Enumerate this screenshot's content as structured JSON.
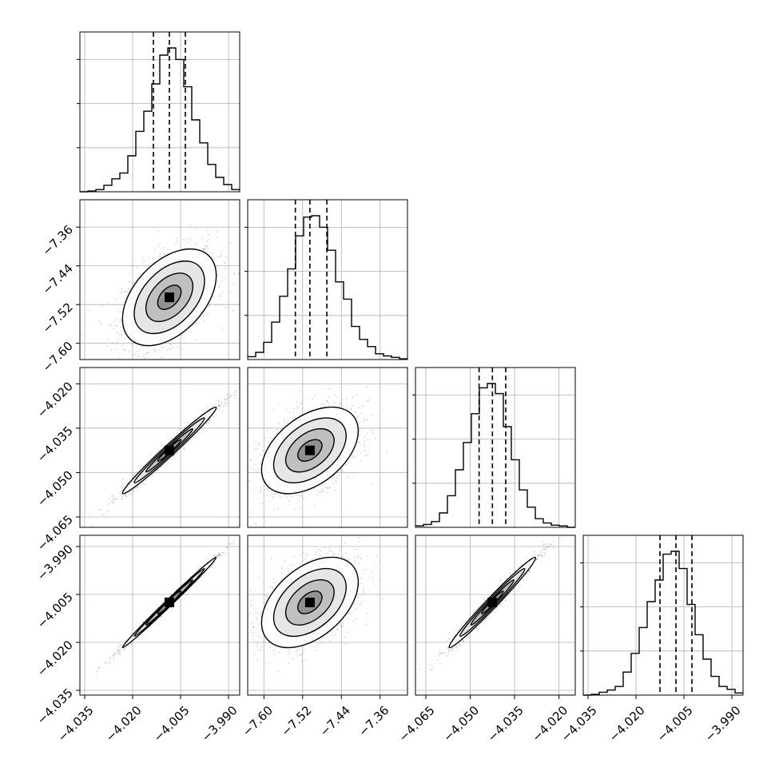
{
  "chart_data": {
    "type": "corner",
    "parameters": [
      {
        "range": [
          -4.0365,
          -3.9865
        ],
        "ticks": [
          -4.035,
          -4.02,
          -4.005,
          -3.99
        ],
        "tick_labels": [
          "−4.035",
          "−4.020",
          "−4.005",
          "−3.990"
        ],
        "quantiles": [
          -4.0135,
          -4.0085,
          -4.0035
        ],
        "hist": {
          "bins": [
            -4.0365,
            -4.034,
            -4.0315,
            -4.029,
            -4.0265,
            -4.024,
            -4.0215,
            -4.019,
            -4.0165,
            -4.014,
            -4.0115,
            -4.009,
            -4.0065,
            -4.004,
            -4.0015,
            -3.999,
            -3.9965,
            -3.994,
            -3.9915,
            -3.989,
            -3.9865
          ],
          "counts": [
            0.0,
            0.005,
            0.015,
            0.045,
            0.09,
            0.13,
            0.25,
            0.42,
            0.56,
            0.75,
            0.95,
            1.0,
            0.92,
            0.73,
            0.5,
            0.34,
            0.19,
            0.1,
            0.05,
            0.015
          ]
        }
      },
      {
        "range": [
          -7.6335,
          -7.3035
        ],
        "ticks": [
          -7.6,
          -7.52,
          -7.44,
          -7.36
        ],
        "tick_labels": [
          "−7.60",
          "−7.52",
          "−7.44",
          "−7.36"
        ],
        "quantiles": [
          -7.535,
          -7.505,
          -7.47
        ],
        "hist": {
          "bins": [
            -7.6335,
            -7.617,
            -7.6005,
            -7.584,
            -7.5675,
            -7.551,
            -7.5345,
            -7.518,
            -7.5015,
            -7.485,
            -7.4685,
            -7.452,
            -7.4355,
            -7.419,
            -7.4025,
            -7.386,
            -7.3695,
            -7.353,
            -7.3365,
            -7.32,
            -7.3035
          ],
          "counts": [
            0.02,
            0.05,
            0.12,
            0.26,
            0.44,
            0.63,
            0.86,
            0.99,
            1.0,
            0.92,
            0.76,
            0.54,
            0.42,
            0.23,
            0.14,
            0.09,
            0.04,
            0.025,
            0.015,
            0.005
          ]
        }
      },
      {
        "range": [
          -4.0685,
          -4.0145
        ],
        "ticks": [
          -4.065,
          -4.05,
          -4.035,
          -4.02
        ],
        "tick_labels": [
          "−4.065",
          "−4.050",
          "−4.035",
          "−4.020"
        ],
        "quantiles": [
          -4.047,
          -4.0425,
          -4.038
        ],
        "hist": {
          "bins": [
            -4.0685,
            -4.0658,
            -4.0631,
            -4.0604,
            -4.0577,
            -4.055,
            -4.0523,
            -4.0496,
            -4.0469,
            -4.0442,
            -4.0415,
            -4.0388,
            -4.0361,
            -4.0334,
            -4.0307,
            -4.028,
            -4.0253,
            -4.0226,
            -4.0199,
            -4.0172,
            -4.0145
          ],
          "counts": [
            0.01,
            0.02,
            0.04,
            0.1,
            0.22,
            0.4,
            0.59,
            0.79,
            0.97,
            1.0,
            0.93,
            0.7,
            0.47,
            0.26,
            0.14,
            0.06,
            0.03,
            0.015,
            0.01,
            0.0
          ]
        }
      },
      {
        "range": [
          -4.0365,
          -3.9865
        ],
        "ticks": [
          -4.035,
          -4.02,
          -4.005,
          -3.99
        ],
        "tick_labels": [
          "−4.035",
          "−4.020",
          "−4.005",
          "−3.990"
        ],
        "quantiles": [
          -4.0125,
          -4.0075,
          -4.0025
        ],
        "hist": {
          "bins": [
            -4.0365,
            -4.034,
            -4.0315,
            -4.029,
            -4.0265,
            -4.024,
            -4.0215,
            -4.019,
            -4.0165,
            -4.014,
            -4.0115,
            -4.009,
            -4.0065,
            -4.004,
            -4.0015,
            -3.999,
            -3.9965,
            -3.994,
            -3.9915,
            -3.989,
            -3.9865
          ],
          "counts": [
            0.0,
            0.005,
            0.02,
            0.035,
            0.06,
            0.16,
            0.29,
            0.47,
            0.65,
            0.8,
            0.98,
            1.0,
            0.88,
            0.63,
            0.42,
            0.25,
            0.13,
            0.06,
            0.04,
            0.015
          ]
        }
      }
    ],
    "pairs": [
      {
        "row": 1,
        "col": 0,
        "center": [
          -4.0085,
          -7.505
        ],
        "corr": 0.45,
        "contour_levels": [
          0.5,
          1.0,
          1.5,
          2.0
        ]
      },
      {
        "row": 2,
        "col": 0,
        "center": [
          -4.0085,
          -4.0425
        ],
        "corr": 0.985,
        "contour_levels": [
          0.5,
          1.0,
          1.5,
          2.0
        ]
      },
      {
        "row": 2,
        "col": 1,
        "center": [
          -7.505,
          -4.0425
        ],
        "corr": 0.45,
        "contour_levels": [
          0.5,
          1.0,
          1.5,
          2.0
        ]
      },
      {
        "row": 3,
        "col": 0,
        "center": [
          -4.0085,
          -4.0075
        ],
        "corr": 0.995,
        "contour_levels": [
          0.5,
          1.0,
          1.5,
          2.0
        ]
      },
      {
        "row": 3,
        "col": 1,
        "center": [
          -7.505,
          -4.0075
        ],
        "corr": 0.45,
        "contour_levels": [
          0.5,
          1.0,
          1.5,
          2.0
        ]
      },
      {
        "row": 3,
        "col": 2,
        "center": [
          -4.0425,
          -4.0075
        ],
        "corr": 0.985,
        "contour_levels": [
          0.5,
          1.0,
          1.5,
          2.0
        ]
      }
    ],
    "grid": true,
    "colors": {
      "line": "#000000",
      "grid": "#b0b0b0",
      "points": "#8c8c8c"
    }
  }
}
